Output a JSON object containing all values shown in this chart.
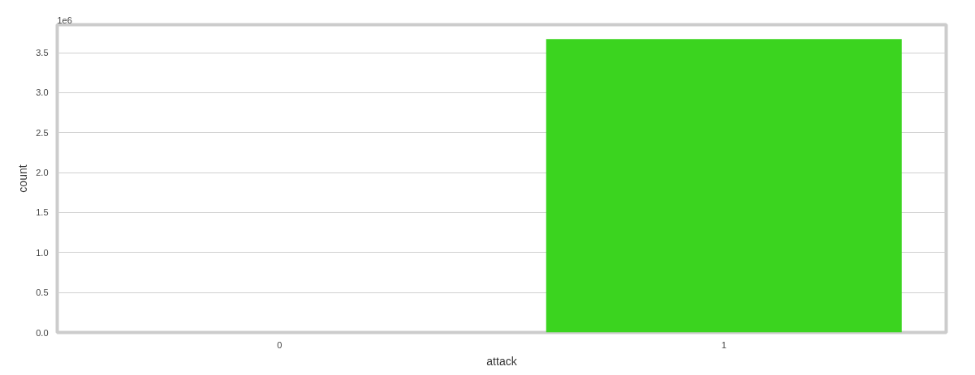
{
  "chart_data": {
    "type": "bar",
    "xlabel": "attack",
    "ylabel": "count",
    "categories": [
      "0",
      "1"
    ],
    "values": [
      0,
      3.67
    ],
    "color": "#3bd41f",
    "ylim": [
      0,
      3.85
    ],
    "yticks": [
      {
        "value": 0,
        "label": "0.0"
      },
      {
        "value": 0.5,
        "label": "0.5"
      },
      {
        "value": 1,
        "label": "1.0"
      },
      {
        "value": 1.5,
        "label": "1.5"
      },
      {
        "value": 2,
        "label": "2.0"
      },
      {
        "value": 2.5,
        "label": "2.5"
      },
      {
        "value": 3,
        "label": "3.0"
      },
      {
        "value": 3.5,
        "label": "3.5"
      }
    ],
    "grid": "y",
    "annotations": [
      "1e6"
    ]
  }
}
